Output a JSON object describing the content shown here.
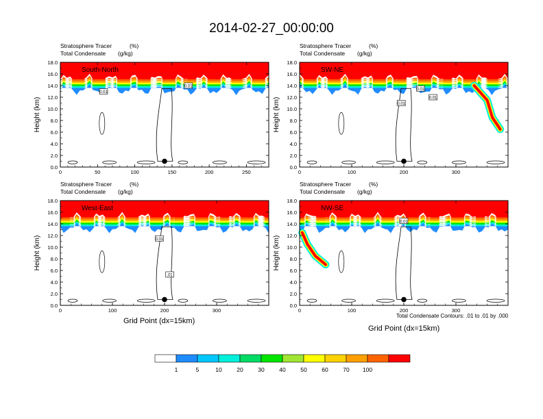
{
  "title": "2014-02-27_00:00:00",
  "panel_header": {
    "line1_name": "Stratosphere Tracer",
    "line1_unit": "(%)",
    "line2_name": "Total Condensate",
    "line2_unit": "(g/kg)"
  },
  "contour_note": "Total Condensate Contours: .01 to .01 by .000",
  "chart_data": [
    {
      "type": "heatmap",
      "panel": "South-North",
      "ylabel": "Height (km)",
      "xlabel": "",
      "xlim": [
        0,
        280
      ],
      "xticks": [
        0,
        50,
        100,
        150,
        200,
        250
      ],
      "ylim": [
        0,
        18
      ],
      "yticks": [
        "0.0",
        "2.0",
        "4.0",
        "6.0",
        "8.0",
        "10.0",
        "12.0",
        "14.0",
        "16.0",
        "18.0"
      ],
      "marker": {
        "x": 140,
        "y": 1.0
      },
      "contour_labels": [
        {
          "text": "0.01",
          "x": 58,
          "y": 13.0
        },
        {
          "text": "0.01",
          "x": 172,
          "y": 14.0
        }
      ],
      "tracer_plume": []
    },
    {
      "type": "heatmap",
      "panel": "SW-NE",
      "ylabel": "Height (km)",
      "xlabel": "",
      "xlim": [
        0,
        400
      ],
      "xticks": [
        0,
        100,
        200,
        300
      ],
      "ylim": [
        0,
        18
      ],
      "yticks": [
        "0.0",
        "2.0",
        "4.0",
        "6.0",
        "8.0",
        "10.0",
        "12.0",
        "14.0",
        "16.0",
        "18.0"
      ],
      "marker": {
        "x": 200,
        "y": 1.0
      },
      "contour_labels": [
        {
          "text": "0.01",
          "x": 195,
          "y": 11.0
        },
        {
          "text": "0.01",
          "x": 232,
          "y": 13.5
        },
        {
          "text": "0.01",
          "x": 256,
          "y": 12.0
        }
      ],
      "tracer_plume": [
        [
          335,
          14.0
        ],
        [
          360,
          11.5
        ],
        [
          370,
          8.5
        ],
        [
          385,
          6.5
        ]
      ]
    },
    {
      "type": "heatmap",
      "panel": "West-East",
      "ylabel": "Height (km)",
      "xlabel": "Grid Point (dx=15km)",
      "xlim": [
        0,
        400
      ],
      "xticks": [
        0,
        100,
        200,
        300
      ],
      "ylim": [
        0,
        18
      ],
      "yticks": [
        "0.0",
        "2.0",
        "4.0",
        "6.0",
        "8.0",
        "10.0",
        "12.0",
        "14.0",
        "16.0",
        "18.0"
      ],
      "marker": {
        "x": 200,
        "y": 1.0
      },
      "contour_labels": [
        {
          "text": "0.01",
          "x": 190,
          "y": 11.5
        },
        {
          "text": ".01",
          "x": 210,
          "y": 5.3
        }
      ],
      "tracer_plume": []
    },
    {
      "type": "heatmap",
      "panel": "NW-SE",
      "ylabel": "Height (km)",
      "xlabel": "Grid Point (dx=15km)",
      "xlim": [
        0,
        400
      ],
      "xticks": [
        0,
        100,
        200,
        300
      ],
      "ylim": [
        0,
        18
      ],
      "yticks": [
        "0.0",
        "2.0",
        "4.0",
        "6.0",
        "8.0",
        "10.0",
        "12.0",
        "14.0",
        "16.0",
        "18.0"
      ],
      "marker": {
        "x": 200,
        "y": 1.0
      },
      "contour_labels": [
        {
          "text": "0.01",
          "x": 200,
          "y": 14.5
        }
      ],
      "tracer_plume": [
        [
          5,
          12.5
        ],
        [
          15,
          10.5
        ],
        [
          30,
          8.5
        ],
        [
          50,
          7.0
        ]
      ]
    }
  ],
  "colorbar": {
    "labels": [
      "1",
      "5",
      "10",
      "20",
      "30",
      "40",
      "50",
      "60",
      "70",
      "100"
    ],
    "colors": [
      "#ffffff",
      "#1e8cff",
      "#00c8ff",
      "#00f0dc",
      "#00dc64",
      "#00e600",
      "#a0e632",
      "#ffff00",
      "#ffd200",
      "#ffa000",
      "#ff6400",
      "#ff0000"
    ]
  }
}
